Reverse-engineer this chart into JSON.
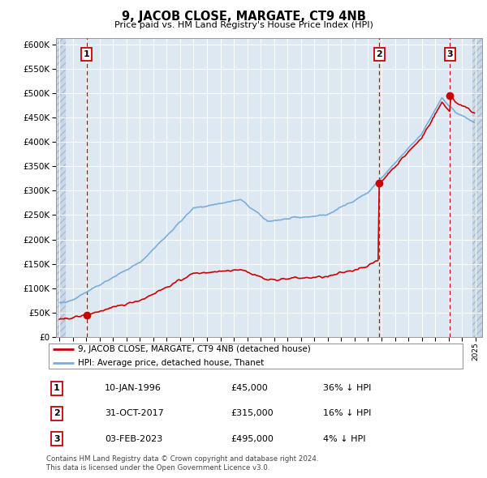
{
  "title": "9, JACOB CLOSE, MARGATE, CT9 4NB",
  "subtitle": "Price paid vs. HM Land Registry's House Price Index (HPI)",
  "ylim": [
    0,
    612500
  ],
  "yticks": [
    0,
    50000,
    100000,
    150000,
    200000,
    250000,
    300000,
    350000,
    400000,
    450000,
    500000,
    550000,
    600000
  ],
  "xlim_start": 1993.75,
  "xlim_end": 2025.5,
  "purchases": [
    {
      "date_num": 1996.03,
      "price": 45000,
      "label": "1"
    },
    {
      "date_num": 2017.83,
      "price": 315000,
      "label": "2"
    },
    {
      "date_num": 2023.09,
      "price": 495000,
      "label": "3"
    }
  ],
  "vlines": [
    1996.03,
    2017.83,
    2023.09
  ],
  "hpi_line_color": "#7aaddb",
  "price_line_color": "#cc0000",
  "vline_color": "#cc0000",
  "bg_color": "#dde8f3",
  "hatch_color": "#c8d8e8",
  "grid_color": "#ffffff",
  "legend_label_price": "9, JACOB CLOSE, MARGATE, CT9 4NB (detached house)",
  "legend_label_hpi": "HPI: Average price, detached house, Thanet",
  "table_entries": [
    {
      "num": "1",
      "date": "10-JAN-1996",
      "price": "£45,000",
      "note": "36% ↓ HPI"
    },
    {
      "num": "2",
      "date": "31-OCT-2017",
      "price": "£315,000",
      "note": "16% ↓ HPI"
    },
    {
      "num": "3",
      "date": "03-FEB-2023",
      "price": "£495,000",
      "note": "4% ↓ HPI"
    }
  ],
  "footer": "Contains HM Land Registry data © Crown copyright and database right 2024.\nThis data is licensed under the Open Government Licence v3.0.",
  "hatch_left_end": 1994.5,
  "hatch_right_start": 2024.75,
  "xtick_start": 1994,
  "xtick_end": 2026
}
